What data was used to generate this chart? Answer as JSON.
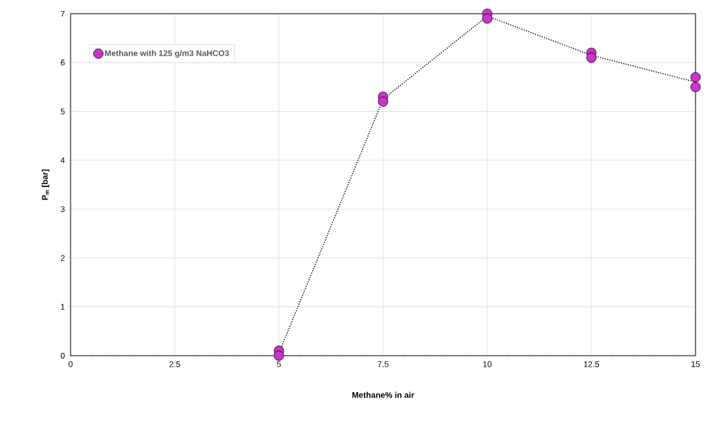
{
  "chart_data": {
    "type": "scatter",
    "xlabel": "Methane% in air",
    "ylabel": "P$_{m}$ [bar]",
    "xlim": [
      0,
      15
    ],
    "ylim": [
      0,
      7
    ],
    "xticks": [
      0,
      2.5,
      5,
      7.5,
      10,
      12.5,
      15
    ],
    "yticks": [
      0,
      1,
      2,
      3,
      4,
      5,
      6,
      7
    ],
    "grid": true,
    "legend": "top left",
    "series": [
      {
        "name": "Methane with 125 g/m3 NaHCO3",
        "color": "#cc33cc",
        "marker": "circle",
        "x": [
          5,
          5,
          7.5,
          7.5,
          10,
          10,
          12.5,
          12.5,
          15,
          15
        ],
        "values": [
          0.1,
          0.0,
          5.3,
          5.2,
          7.0,
          6.9,
          6.2,
          6.1,
          5.7,
          5.5
        ]
      },
      {
        "type": "line",
        "color": "#000000",
        "line_style": "dotted",
        "marker": "none",
        "x": [
          5,
          7.5,
          10,
          12.5,
          15
        ],
        "values": [
          0.05,
          5.25,
          6.95,
          6.15,
          5.6
        ]
      }
    ]
  }
}
